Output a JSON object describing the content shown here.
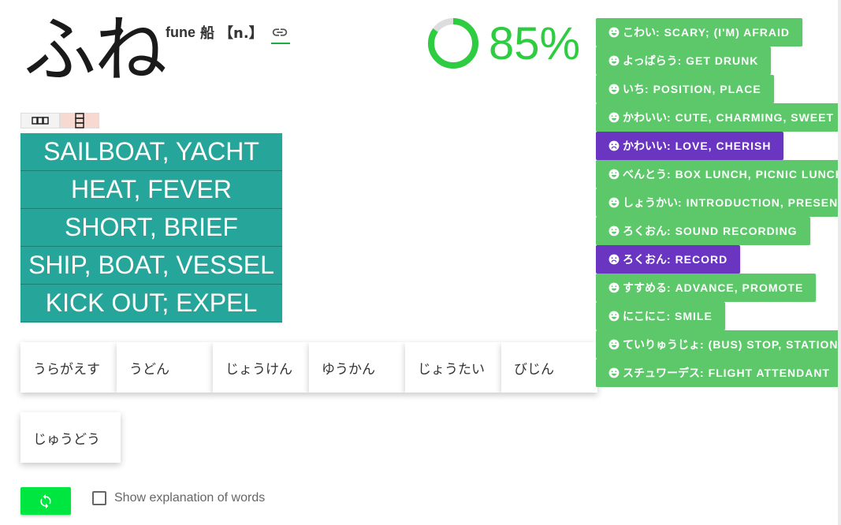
{
  "word": {
    "kana": "ふね",
    "romaji": "fune",
    "kanji": "船",
    "pos": "【n.】",
    "link_icon": "link-icon"
  },
  "progress": {
    "percent": 85,
    "label": "85%",
    "color": "#2ecc40"
  },
  "view_toggle": {
    "grid_icon": "grid-icon",
    "list_icon": "list-icon"
  },
  "answers": [
    "SAILBOAT, YACHT",
    "HEAT, FEVER",
    "SHORT, BRIEF",
    "SHIP, BOAT, VESSEL",
    "KICK OUT; EXPEL"
  ],
  "kana_options": [
    "うらがえす",
    "うどん",
    "じょうけん",
    "ゆうかん",
    "じょうたい",
    "びじん",
    "じゅうどう"
  ],
  "controls": {
    "refresh_icon": "refresh-icon",
    "explanation_label": "Show explanation of words"
  },
  "history": [
    {
      "kana": "こわい",
      "meaning": "SCARY; (I'M) AFRAID",
      "status": "good"
    },
    {
      "kana": "よっぱらう",
      "meaning": "GET DRUNK",
      "status": "good"
    },
    {
      "kana": "いち",
      "meaning": "POSITION, PLACE",
      "status": "good"
    },
    {
      "kana": "かわいい",
      "meaning": "CUTE, CHARMING, SWEET",
      "status": "good"
    },
    {
      "kana": "かわいい",
      "meaning": "LOVE, CHERISH",
      "status": "bad"
    },
    {
      "kana": "べんとう",
      "meaning": "BOX LUNCH, PICNIC LUNCH",
      "status": "good"
    },
    {
      "kana": "しょうかい",
      "meaning": "INTRODUCTION, PRESENTATION",
      "status": "good"
    },
    {
      "kana": "ろくおん",
      "meaning": "SOUND RECORDING",
      "status": "good"
    },
    {
      "kana": "ろくおん",
      "meaning": "RECORD",
      "status": "bad"
    },
    {
      "kana": "すすめる",
      "meaning": "ADVANCE, PROMOTE",
      "status": "good"
    },
    {
      "kana": "にこにこ",
      "meaning": "SMILE",
      "status": "good"
    },
    {
      "kana": "ていりゅうじょ",
      "meaning": "(BUS) STOP, STATION",
      "status": "good"
    },
    {
      "kana": "スチュワーデス",
      "meaning": "FLIGHT ATTENDANT",
      "status": "good"
    }
  ],
  "colors": {
    "answer_bg": "#26a69a",
    "chip_good": "#5cc86a",
    "chip_bad": "#6a35c0",
    "refresh_bg": "#00e640"
  }
}
